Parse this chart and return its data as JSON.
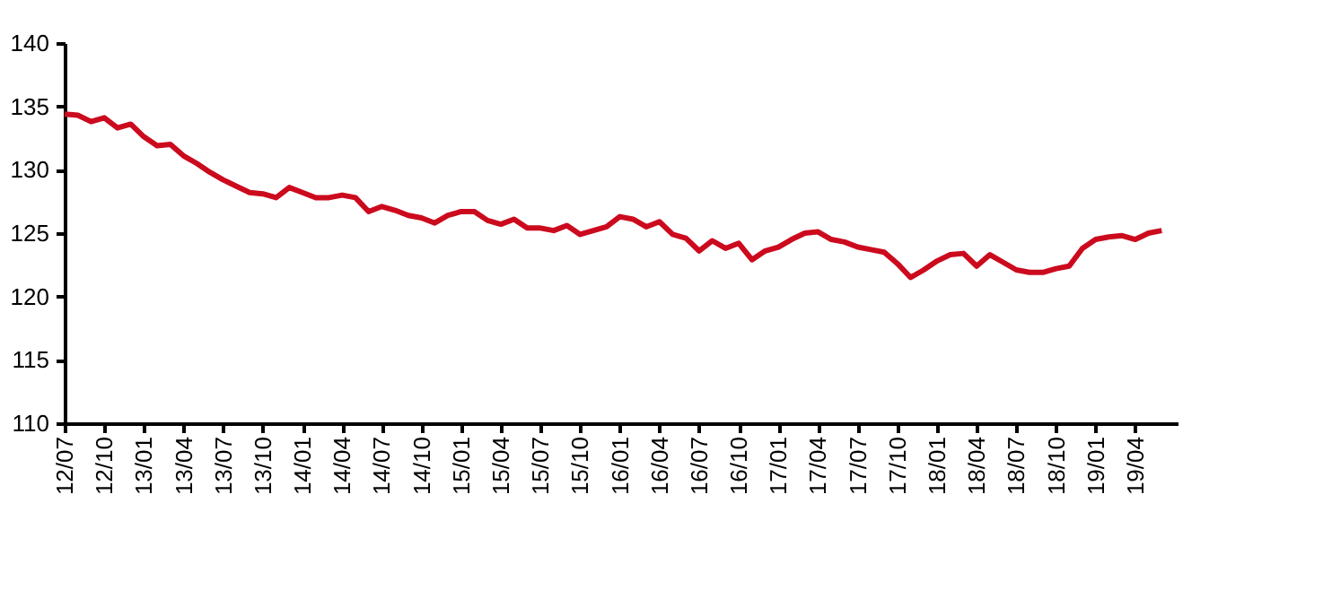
{
  "chart_data": {
    "type": "line",
    "categories": [
      "12/07",
      null,
      null,
      "12/10",
      null,
      null,
      "13/01",
      null,
      null,
      "13/04",
      null,
      null,
      "13/07",
      null,
      null,
      "13/10",
      null,
      null,
      "14/01",
      null,
      null,
      "14/04",
      null,
      null,
      "14/07",
      null,
      null,
      "14/10",
      null,
      null,
      "15/01",
      null,
      null,
      "15/04",
      null,
      null,
      "15/07",
      null,
      null,
      "15/10",
      null,
      null,
      "16/01",
      null,
      null,
      "16/04",
      null,
      null,
      "16/07",
      null,
      null,
      "16/10",
      null,
      null,
      "17/01",
      null,
      null,
      "17/04",
      null,
      null,
      "17/07",
      null,
      null,
      "17/10",
      null,
      null,
      "18/01",
      null,
      null,
      "18/04",
      null,
      null,
      "18/07",
      null,
      null,
      "18/10",
      null,
      null,
      "19/01",
      null,
      null,
      "19/04",
      null,
      null
    ],
    "series": [
      {
        "color": "#cc0a1e",
        "values": [
          134.4,
          134.3,
          133.8,
          134.1,
          133.3,
          133.6,
          132.6,
          131.9,
          132.0,
          131.1,
          130.5,
          129.8,
          129.2,
          128.7,
          128.2,
          128.1,
          127.8,
          128.6,
          128.2,
          127.8,
          127.8,
          128.0,
          127.8,
          126.7,
          127.1,
          126.8,
          126.4,
          126.2,
          125.8,
          126.4,
          126.7,
          126.7,
          126.0,
          125.7,
          126.1,
          125.4,
          125.4,
          125.2,
          125.6,
          124.9,
          125.2,
          125.5,
          126.3,
          126.1,
          125.5,
          125.9,
          124.9,
          124.6,
          123.6,
          124.4,
          123.8,
          124.2,
          122.9,
          123.6,
          123.9,
          124.5,
          125.0,
          125.1,
          124.5,
          124.3,
          123.9,
          123.7,
          123.5,
          122.6,
          121.5,
          122.1,
          122.8,
          123.3,
          123.4,
          122.4,
          123.3,
          122.7,
          122.1,
          121.9,
          121.9,
          122.2,
          122.4,
          123.8,
          124.5,
          124.7,
          124.8,
          124.5,
          125.0,
          125.2
        ]
      }
    ],
    "ylim": [
      110,
      140
    ],
    "yticks": [
      110,
      115,
      120,
      125,
      130,
      135,
      140
    ],
    "grid": false,
    "marker": "none",
    "line_style": "solid"
  }
}
